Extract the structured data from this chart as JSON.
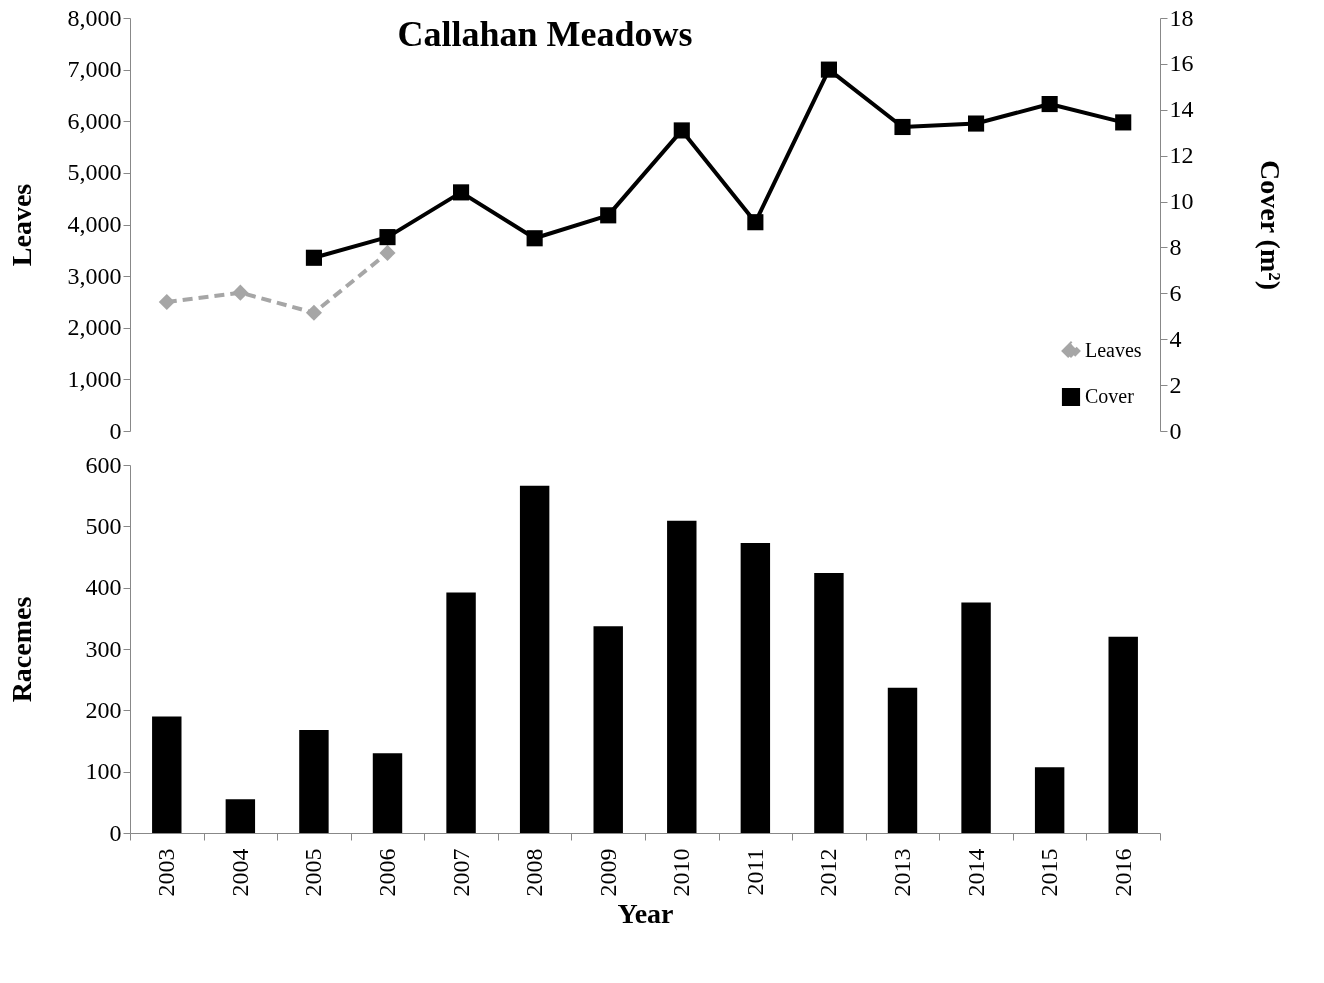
{
  "chart_data": [
    {
      "type": "line",
      "title": "Callahan Meadows",
      "ylabel": "Leaves",
      "y2label": "Cover (m²)",
      "categories": [
        "2003",
        "2004",
        "2005",
        "2006",
        "2007",
        "2008",
        "2009",
        "2010",
        "2011",
        "2012",
        "2013",
        "2014",
        "2015",
        "2016"
      ],
      "series": [
        {
          "name": "Leaves",
          "color": "#a6a6a6",
          "line_style": "dashed",
          "marker": "diamond",
          "values": [
            2500,
            2680,
            2290,
            3450,
            null,
            null,
            null,
            null,
            null,
            null,
            null,
            null,
            null,
            null
          ]
        },
        {
          "name": "Cover",
          "color": "#000000",
          "line_style": "solid",
          "marker": "square",
          "axis": "y2",
          "values": [
            null,
            null,
            7.55,
            8.45,
            10.4,
            8.4,
            9.4,
            13.1,
            9.1,
            15.75,
            13.25,
            13.4,
            14.25,
            13.45
          ]
        }
      ],
      "ylim": [
        0,
        8000
      ],
      "yticks": [
        0,
        {
          "value": 1000,
          "label": "1,000"
        },
        {
          "value": 2000,
          "label": "2,000"
        },
        {
          "value": 3000,
          "label": "3,000"
        },
        {
          "value": 4000,
          "label": "4,000"
        },
        {
          "value": 5000,
          "label": "5,000"
        },
        {
          "value": 6000,
          "label": "6,000"
        },
        {
          "value": 7000,
          "label": "7,000"
        },
        {
          "value": 8000,
          "label": "8,000"
        }
      ],
      "y2lim": [
        0,
        18
      ],
      "y2ticks": [
        0,
        2,
        4,
        6,
        8,
        10,
        12,
        14,
        16,
        18
      ],
      "tick_labels": "y",
      "legend": "bottom right",
      "grid": false
    },
    {
      "type": "bar",
      "xlabel": "Year",
      "ylabel": "Racemes",
      "categories": [
        "2003",
        "2004",
        "2005",
        "2006",
        "2007",
        "2008",
        "2009",
        "2010",
        "2011",
        "2012",
        "2013",
        "2014",
        "2015",
        "2016"
      ],
      "values": [
        190,
        55,
        168,
        130,
        392,
        566,
        337,
        509,
        473,
        424,
        237,
        376,
        107,
        320
      ],
      "color": "#000000",
      "ylim": [
        0,
        600
      ],
      "yticks": [
        0,
        100,
        200,
        300,
        400,
        500,
        600
      ],
      "grid": false
    }
  ]
}
